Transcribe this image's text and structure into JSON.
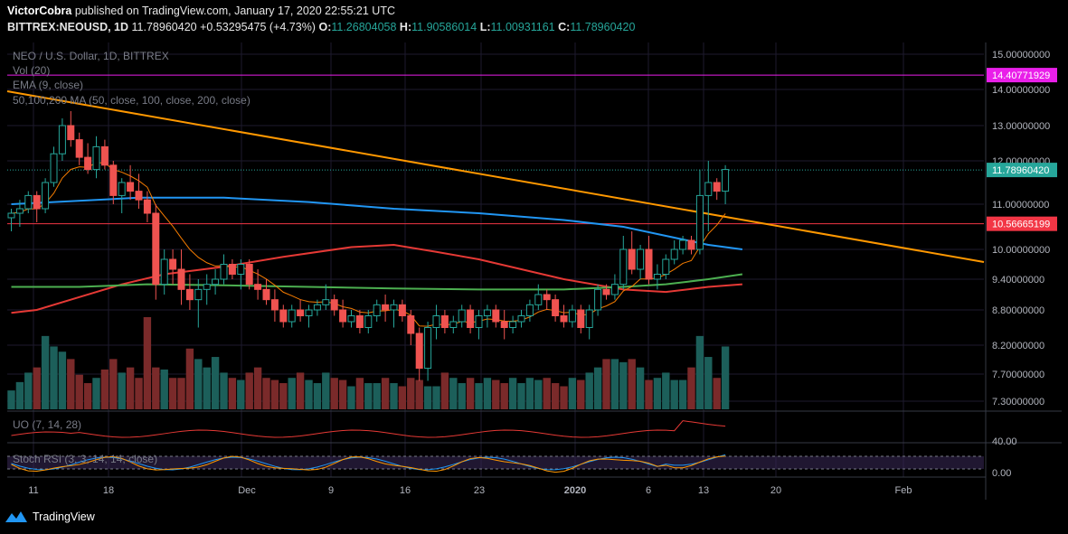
{
  "header": {
    "author": "VictorCobra",
    "published_text": "published on TradingView.com, January 17, 2020 22:55:21 UTC"
  },
  "ohlc": {
    "symbol": "BITTREX:NEOUSD, 1D",
    "last": "11.78960420",
    "change": "+0.53295475 (+4.73%)",
    "o_label": "O:",
    "o": "11.26804058",
    "h_label": "H:",
    "h": "11.90586014",
    "l_label": "L:",
    "l": "11.00931161",
    "c_label": "C:",
    "c": "11.78960420"
  },
  "legend": {
    "title": "NEO / U.S. Dollar, 1D, BITTREX",
    "vol": "Vol (20)",
    "ema": "EMA (9, close)",
    "ma": "50,100,200 MA (50, close, 100, close, 200, close)",
    "uo": "UO (7, 14, 28)",
    "stoch": "Stoch RSI (3, 3, 14, 14, close)"
  },
  "price_axis": {
    "ticks": [
      "15.00000000",
      "14.00000000",
      "13.00000000",
      "12.00000000",
      "11.00000000",
      "10.00000000",
      "9.40000000",
      "8.80000000",
      "8.20000000",
      "7.70000000",
      "7.30000000"
    ],
    "labels": [
      {
        "text": "14.40771929",
        "color": "#e91fe9"
      },
      {
        "text": "11.78960420",
        "color": "#26a69a"
      },
      {
        "text": "10.56665199",
        "color": "#f23645"
      }
    ]
  },
  "uo_axis": {
    "ticks": [
      "40.00"
    ]
  },
  "stoch_axis": {
    "ticks": [
      "0.00"
    ]
  },
  "time_axis": {
    "ticks": [
      "11",
      "18",
      "Dec",
      "9",
      "16",
      "23",
      "2020",
      "6",
      "13",
      "20",
      "Feb"
    ]
  },
  "footer": {
    "brand": "TradingView"
  },
  "colors": {
    "up": "#26a69a",
    "down": "#ef5350",
    "vol_up": "#1c5f5a",
    "vol_down": "#7a2a2a",
    "ema": "#f57c00",
    "ma50": "#e53935",
    "ma100": "#2196f3",
    "ma200": "#4caf50",
    "trendline": "#ff9800",
    "magenta": "#e91fe9",
    "redline": "#f23645"
  },
  "chart_data": {
    "type": "candlestick",
    "title": "NEO / U.S. Dollar, 1D, BITTREX",
    "price_lines": [
      14.40771929,
      10.56665199,
      11.7896042
    ],
    "candles": [
      [
        10.7,
        10.9,
        10.4,
        10.8
      ],
      [
        10.8,
        11.1,
        10.5,
        10.9
      ],
      [
        10.9,
        11.3,
        10.8,
        11.2
      ],
      [
        11.2,
        11.3,
        10.6,
        10.9
      ],
      [
        10.9,
        11.6,
        10.8,
        11.5
      ],
      [
        11.5,
        12.4,
        11.4,
        12.2
      ],
      [
        12.2,
        13.2,
        12.0,
        13.0
      ],
      [
        13.0,
        13.4,
        12.4,
        12.6
      ],
      [
        12.6,
        12.8,
        11.9,
        12.1
      ],
      [
        12.1,
        12.5,
        11.7,
        11.8
      ],
      [
        11.8,
        12.7,
        11.6,
        12.4
      ],
      [
        12.4,
        12.6,
        11.8,
        11.9
      ],
      [
        11.9,
        12.0,
        11.0,
        11.2
      ],
      [
        11.2,
        11.6,
        10.8,
        11.5
      ],
      [
        11.5,
        11.9,
        11.1,
        11.3
      ],
      [
        11.3,
        11.7,
        10.9,
        11.1
      ],
      [
        11.1,
        11.3,
        10.6,
        10.8
      ],
      [
        10.8,
        11.0,
        9.0,
        9.3
      ],
      [
        9.3,
        10.0,
        9.1,
        9.8
      ],
      [
        9.8,
        10.0,
        9.3,
        9.6
      ],
      [
        9.6,
        10.0,
        8.9,
        9.2
      ],
      [
        9.2,
        9.5,
        8.8,
        9.0
      ],
      [
        9.0,
        9.4,
        8.5,
        9.2
      ],
      [
        9.2,
        9.5,
        8.9,
        9.3
      ],
      [
        9.3,
        9.6,
        9.1,
        9.4
      ],
      [
        9.4,
        9.9,
        9.3,
        9.7
      ],
      [
        9.7,
        9.8,
        9.4,
        9.5
      ],
      [
        9.5,
        9.8,
        9.2,
        9.7
      ],
      [
        9.7,
        9.8,
        9.2,
        9.3
      ],
      [
        9.3,
        9.6,
        9.0,
        9.2
      ],
      [
        9.2,
        9.4,
        8.9,
        9.0
      ],
      [
        9.0,
        9.2,
        8.6,
        8.8
      ],
      [
        8.8,
        8.9,
        8.5,
        8.6
      ],
      [
        8.6,
        8.9,
        8.5,
        8.8
      ],
      [
        8.8,
        9.0,
        8.6,
        8.7
      ],
      [
        8.7,
        8.9,
        8.5,
        8.8
      ],
      [
        8.8,
        9.0,
        8.7,
        8.9
      ],
      [
        8.9,
        9.3,
        8.8,
        9.0
      ],
      [
        9.0,
        9.1,
        8.7,
        8.8
      ],
      [
        8.8,
        9.0,
        8.5,
        8.6
      ],
      [
        8.6,
        8.8,
        8.5,
        8.7
      ],
      [
        8.7,
        8.8,
        8.4,
        8.5
      ],
      [
        8.5,
        8.8,
        8.4,
        8.7
      ],
      [
        8.7,
        9.0,
        8.6,
        8.9
      ],
      [
        8.9,
        9.1,
        8.6,
        8.8
      ],
      [
        8.8,
        9.0,
        8.5,
        8.9
      ],
      [
        8.9,
        9.0,
        8.6,
        8.7
      ],
      [
        8.7,
        8.8,
        8.2,
        8.4
      ],
      [
        8.4,
        8.5,
        7.6,
        7.8
      ],
      [
        7.8,
        8.6,
        7.6,
        8.5
      ],
      [
        8.5,
        8.9,
        8.3,
        8.7
      ],
      [
        8.7,
        8.8,
        8.4,
        8.5
      ],
      [
        8.5,
        8.7,
        8.4,
        8.6
      ],
      [
        8.6,
        8.9,
        8.5,
        8.8
      ],
      [
        8.8,
        8.9,
        8.4,
        8.5
      ],
      [
        8.5,
        8.8,
        8.3,
        8.7
      ],
      [
        8.7,
        8.9,
        8.5,
        8.8
      ],
      [
        8.8,
        8.9,
        8.5,
        8.6
      ],
      [
        8.6,
        8.8,
        8.3,
        8.5
      ],
      [
        8.5,
        8.7,
        8.4,
        8.6
      ],
      [
        8.6,
        8.8,
        8.5,
        8.7
      ],
      [
        8.7,
        9.0,
        8.6,
        8.9
      ],
      [
        8.9,
        9.3,
        8.8,
        9.1
      ],
      [
        9.1,
        9.2,
        8.8,
        9.0
      ],
      [
        9.0,
        9.1,
        8.6,
        8.7
      ],
      [
        8.7,
        8.9,
        8.5,
        8.6
      ],
      [
        8.6,
        8.9,
        8.5,
        8.8
      ],
      [
        8.8,
        8.9,
        8.4,
        8.5
      ],
      [
        8.5,
        8.9,
        8.3,
        8.8
      ],
      [
        8.8,
        9.3,
        8.7,
        9.2
      ],
      [
        9.2,
        9.3,
        9.0,
        9.1
      ],
      [
        9.1,
        9.5,
        9.0,
        9.3
      ],
      [
        9.3,
        10.3,
        9.2,
        10.0
      ],
      [
        10.0,
        10.4,
        9.5,
        9.6
      ],
      [
        9.6,
        10.1,
        9.4,
        10.0
      ],
      [
        10.0,
        10.3,
        9.3,
        9.4
      ],
      [
        9.4,
        9.7,
        9.2,
        9.5
      ],
      [
        9.5,
        9.9,
        9.4,
        9.8
      ],
      [
        9.8,
        10.2,
        9.7,
        10.0
      ],
      [
        10.0,
        10.3,
        9.9,
        10.2
      ],
      [
        10.2,
        10.3,
        9.9,
        10.0
      ],
      [
        10.0,
        11.8,
        9.9,
        11.2
      ],
      [
        11.2,
        12.0,
        10.4,
        11.5
      ],
      [
        11.5,
        11.6,
        11.1,
        11.3
      ],
      [
        11.3,
        11.9,
        11.0,
        11.8
      ]
    ],
    "volume": [
      18,
      26,
      35,
      40,
      70,
      60,
      55,
      48,
      33,
      25,
      30,
      38,
      48,
      35,
      40,
      30,
      88,
      40,
      38,
      30,
      30,
      58,
      48,
      40,
      50,
      35,
      30,
      28,
      35,
      40,
      30,
      28,
      25,
      30,
      35,
      28,
      25,
      35,
      30,
      28,
      22,
      30,
      25,
      25,
      30,
      25,
      22,
      30,
      28,
      22,
      22,
      35,
      30,
      25,
      30,
      25,
      30,
      28,
      25,
      30,
      25,
      30,
      28,
      30,
      25,
      22,
      30,
      28,
      35,
      40,
      48,
      48,
      45,
      48,
      40,
      28,
      30,
      35,
      28,
      28,
      40,
      70,
      50,
      30,
      60
    ]
  }
}
